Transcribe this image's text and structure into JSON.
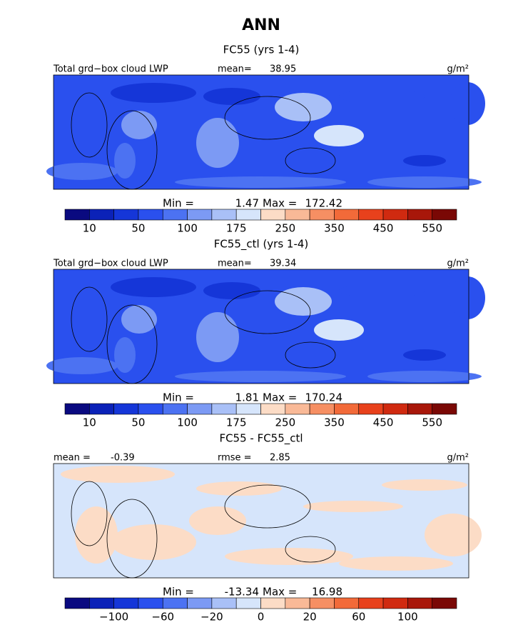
{
  "title": "ANN",
  "colorbar_colors": [
    "#0a0a80",
    "#0b22b8",
    "#1536d8",
    "#2a50ee",
    "#4c72f2",
    "#7c9af4",
    "#a9c0f7",
    "#d6e5fb",
    "#fcdcc6",
    "#f9b997",
    "#f68f63",
    "#f26a39",
    "#e8411c",
    "#d02a10",
    "#a8170a",
    "#7a0805"
  ],
  "panels": [
    {
      "subtitle": "FC55 (yrs 1-4)",
      "left_label": "Total grd−box cloud LWP",
      "stat_label": "mean=",
      "stat_value": 38.95,
      "units": "g/m²",
      "min_label": "Min =",
      "min": 1.47,
      "max_label": "Max =",
      "max": 172.42,
      "ticks": [
        "10",
        "50",
        "100",
        "175",
        "250",
        "350",
        "450",
        "550"
      ],
      "map": "field"
    },
    {
      "subtitle": "FC55_ctl (yrs 1-4)",
      "left_label": "Total grd−box cloud LWP",
      "stat_label": "mean=",
      "stat_value": 39.34,
      "units": "g/m²",
      "min_label": "Min =",
      "min": 1.81,
      "max_label": "Max =",
      "max": 170.24,
      "ticks": [
        "10",
        "50",
        "100",
        "175",
        "250",
        "350",
        "450",
        "550"
      ],
      "map": "field"
    },
    {
      "subtitle": "FC55 - FC55_ctl",
      "left_label": "mean =",
      "left_value": -0.39,
      "stat_label": "rmse =",
      "stat_value": 2.85,
      "units": "g/m²",
      "min_label": "Min =",
      "min": -13.34,
      "max_label": "Max =",
      "max": 16.98,
      "ticks": [
        "−100",
        "−60",
        "−20",
        "0",
        "20",
        "60",
        "100"
      ],
      "map": "diff"
    }
  ]
}
